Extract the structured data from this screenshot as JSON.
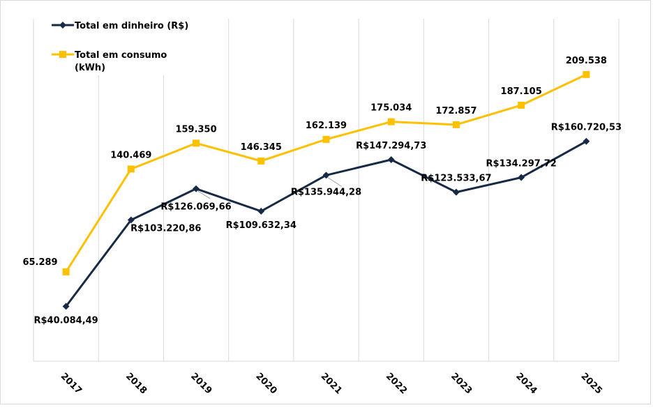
{
  "chart_data": {
    "type": "line",
    "title": "",
    "xlabel": "",
    "ylabel": "",
    "categories": [
      "2017",
      "2018",
      "2019",
      "2020",
      "2021",
      "2022",
      "2023",
      "2024",
      "2025"
    ],
    "ylim": [
      0,
      250000
    ],
    "grid": {
      "vertical": true,
      "horizontal": false
    },
    "legend_position": "top-left",
    "series": [
      {
        "name": "Total em dinheiro (R$)",
        "color": "#172a45",
        "marker": "diamond",
        "values": [
          40084.49,
          103220.86,
          126069.66,
          109632.34,
          135944.28,
          147294.73,
          123533.67,
          134297.72,
          160720.53
        ],
        "labels": [
          "R$40.084,49",
          "R$103.220,86",
          "R$126.069,66",
          "R$109.632,34",
          "R$135.944,28",
          "R$147.294,73",
          "R$123.533,67",
          "R$134.297,72",
          "R$160.720,53"
        ]
      },
      {
        "name": "Total em consumo (kWh)",
        "color": "#ffc000",
        "marker": "square",
        "values": [
          65289,
          140469,
          159350,
          146345,
          162139,
          175034,
          172857,
          187105,
          209538
        ],
        "labels": [
          "65.289",
          "140.469",
          "159.350",
          "146.345",
          "162.139",
          "175.034",
          "172.857",
          "187.105",
          "209.538"
        ]
      }
    ]
  },
  "legend": {
    "items": [
      {
        "line1": "Total em dinheiro (R$)",
        "line2": ""
      },
      {
        "line1": "Total em consumo",
        "line2": "(kWh)"
      }
    ]
  },
  "colors": {
    "gridline": "#d9d9d9",
    "frame": "#d9d9d9"
  }
}
